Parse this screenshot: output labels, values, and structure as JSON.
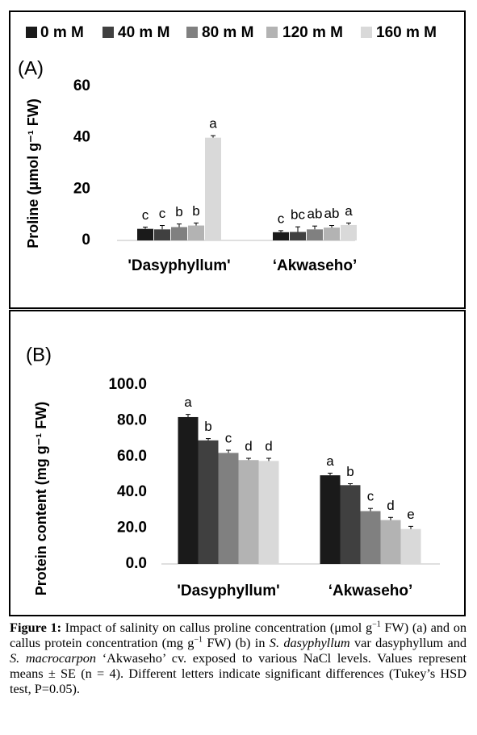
{
  "chart_data": [
    {
      "type": "bar",
      "panel_label": "(A)",
      "y_label": "Proline (μmol g⁻¹ FW)",
      "categories": [
        "'Dasyphyllum'",
        "‘Akwaseho’"
      ],
      "ylim": [
        0,
        60
      ],
      "yticks": [
        0,
        20,
        40,
        60
      ],
      "series": [
        {
          "name": "0 m M",
          "color": "#1a1a1a",
          "values": [
            4.5,
            3.2
          ],
          "errors": [
            0.7,
            0.6
          ],
          "letters": [
            "c",
            "c"
          ]
        },
        {
          "name": "40 m M",
          "color": "#404040",
          "values": [
            4.3,
            3.3
          ],
          "errors": [
            1.5,
            2.0
          ],
          "letters": [
            "c",
            "bc"
          ]
        },
        {
          "name": "80 m M",
          "color": "#808080",
          "values": [
            5.2,
            4.3
          ],
          "errors": [
            1.2,
            1.3
          ],
          "letters": [
            "b",
            "ab"
          ]
        },
        {
          "name": "120 m M",
          "color": "#b3b3b3",
          "values": [
            5.8,
            5.0
          ],
          "errors": [
            1.0,
            0.8
          ],
          "letters": [
            "b",
            "ab"
          ]
        },
        {
          "name": "160 m M",
          "color": "#d9d9d9",
          "values": [
            40,
            6.0
          ],
          "errors": [
            0.8,
            0.8
          ],
          "letters": [
            "a",
            "a"
          ]
        }
      ]
    },
    {
      "type": "bar",
      "panel_label": "(B)",
      "y_label": "Protein content (mg g⁻¹ FW)",
      "categories": [
        "'Dasyphyllum'",
        "‘Akwaseho’"
      ],
      "ylim": [
        0,
        100
      ],
      "yticks": [
        {
          "value": 0,
          "label": "0.0"
        },
        {
          "value": 20,
          "label": "20.0"
        },
        {
          "value": 40,
          "label": "40.0"
        },
        {
          "value": 60,
          "label": "60.0"
        },
        {
          "value": 80,
          "label": "80.0"
        },
        {
          "value": 100,
          "label": "100.0"
        }
      ],
      "series": [
        {
          "color": "#1a1a1a",
          "values": [
            82,
            49.5
          ],
          "errors": [
            1.5,
            1.2
          ],
          "letters": [
            "a",
            "a"
          ]
        },
        {
          "color": "#404040",
          "values": [
            69,
            44
          ],
          "errors": [
            1.0,
            0.8
          ],
          "letters": [
            "b",
            "b"
          ]
        },
        {
          "color": "#808080",
          "values": [
            62,
            29.5
          ],
          "errors": [
            1.5,
            1.5
          ],
          "letters": [
            "c",
            "c"
          ]
        },
        {
          "color": "#b3b3b3",
          "values": [
            58,
            24.5
          ],
          "errors": [
            1.0,
            1.5
          ],
          "letters": [
            "d",
            "d"
          ]
        },
        {
          "color": "#d9d9d9",
          "values": [
            57.5,
            19.5
          ],
          "errors": [
            1.5,
            1.5
          ],
          "letters": [
            "d",
            "e"
          ]
        }
      ]
    }
  ],
  "caption": [
    {
      "text": "Figure 1:",
      "bold": true
    },
    {
      "text": " Impact of salinity on callus proline concentration (μmol g"
    },
    {
      "text": "−1",
      "sup": true
    },
    {
      "text": " FW) (a) and on callus protein concentration (mg g"
    },
    {
      "text": "−1",
      "sup": true
    },
    {
      "text": " FW) (b) in "
    },
    {
      "text": "S. dasyphyllum",
      "italic": true
    },
    {
      "text": " var dasyphyllum and "
    },
    {
      "text": "S. macrocarpon",
      "italic": true
    },
    {
      "text": " ‘Akwaseho’ cv. exposed to various NaCl levels. Values represent means ± SE (n = 4). Different letters indicate significant differences (Tukey’s HSD test, P=0.05)."
    }
  ]
}
